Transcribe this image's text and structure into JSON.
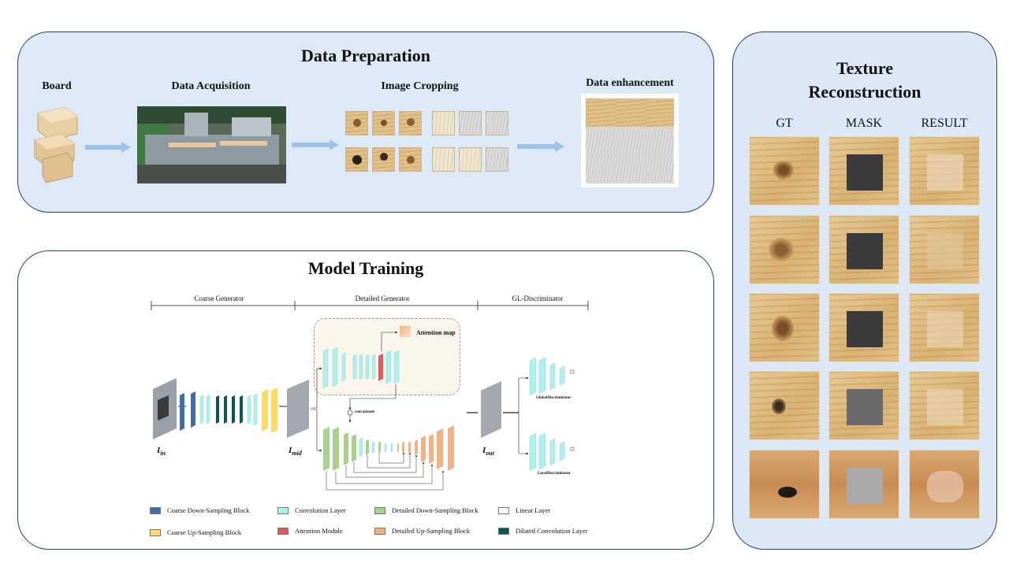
{
  "data_preparation": {
    "title": "Data Preparation",
    "stages": {
      "board": "Board",
      "acquisition": "Data Acquisition",
      "cropping": "Image Cropping",
      "enhancement": "Data enhancement"
    }
  },
  "model_training": {
    "title": "Model Training",
    "sections": {
      "coarse": "Coarse Generator",
      "detailed": "Detailed Generator",
      "disc": "GL-Discriminator"
    },
    "attention_label": "Attention map",
    "concat_label": "concatenate",
    "global_disc": "GlobalDiscriminator",
    "local_disc": "LocalDiscriminator",
    "io": {
      "in_main": "I",
      "in_sub": "in",
      "mid_main": "I",
      "mid_sub": "mid",
      "out_main": "I",
      "out_sub": "out"
    },
    "legend": [
      {
        "label": "Coarse Down-Sampling Block",
        "color": "#3e6ea5"
      },
      {
        "label": "Convolution Layer",
        "color": "#aef0ec"
      },
      {
        "label": "Detailed Down-Sampling Block",
        "color": "#a9d18e"
      },
      {
        "label": "Linear Layer",
        "color": "#ffffff"
      },
      {
        "label": "Coarse Up-Sampling Block",
        "color": "#ffd966"
      },
      {
        "label": "Attention Module",
        "color": "#e05a5a"
      },
      {
        "label": "Detailed Up-Sampling Block",
        "color": "#f4b183"
      },
      {
        "label": "Dilated Convolution Layer",
        "color": "#0b5552"
      }
    ]
  },
  "texture_reconstruction": {
    "title_line1": "Texture",
    "title_line2": "Reconstruction",
    "columns": [
      "GT",
      "MASK",
      "RESULT"
    ]
  }
}
